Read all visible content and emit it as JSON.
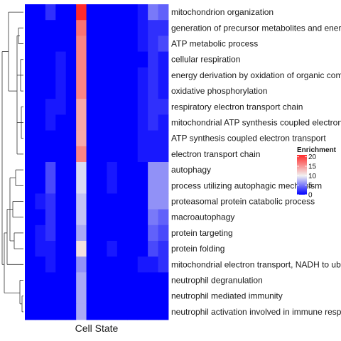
{
  "chart_data": {
    "type": "heatmap",
    "xlabel": "Cell State",
    "legend": {
      "title": "Enrichment",
      "ticks": [
        0,
        5,
        10,
        15,
        20
      ],
      "range": [
        0,
        21
      ],
      "placement": "right",
      "colors": {
        "low": "#0000ff",
        "mid": "#f2f2f2",
        "high": "#ff2a2a"
      }
    },
    "rows": [
      "mitochondrion organization",
      "generation of precursor metabolites and energy",
      "ATP metabolic process",
      "cellular respiration",
      "energy derivation by oxidation of organic compounds",
      "oxidative phosphorylation",
      "respiratory electron transport chain",
      "mitochondrial ATP synthesis coupled electron transport",
      "ATP synthesis coupled electron transport",
      "electron transport chain",
      "autophagy",
      "process utilizing autophagic mechanism",
      "proteasomal protein catabolic process",
      "macroautophagy",
      "protein targeting",
      "protein folding",
      "mitochondrial electron transport, NADH to ubiquinone",
      "neutrophil degranulation",
      "neutrophil mediated immunity",
      "neutrophil activation involved in immune response"
    ],
    "values": [
      [
        0,
        0,
        2,
        0,
        0,
        21,
        0,
        0,
        0,
        0,
        0,
        1,
        5,
        4
      ],
      [
        0,
        0,
        0,
        0,
        0,
        17,
        0,
        0,
        0,
        0,
        0,
        1,
        2,
        2
      ],
      [
        0,
        0,
        0,
        0,
        0,
        16,
        0,
        0,
        0,
        0,
        0,
        1,
        2,
        3
      ],
      [
        0,
        0,
        0,
        1,
        0,
        16,
        0,
        0,
        0,
        0,
        0,
        0,
        2,
        1
      ],
      [
        0,
        0,
        0,
        1,
        0,
        16,
        0,
        0,
        0,
        0,
        0,
        1,
        2,
        1
      ],
      [
        0,
        0,
        0,
        1,
        0,
        16,
        0,
        0,
        0,
        0,
        0,
        1,
        2,
        1
      ],
      [
        0,
        0,
        1,
        1,
        0,
        14,
        0,
        0,
        0,
        0,
        0,
        1,
        2,
        2
      ],
      [
        0,
        0,
        1,
        0,
        0,
        14,
        0,
        0,
        0,
        0,
        0,
        1,
        2,
        1
      ],
      [
        0,
        0,
        0,
        0,
        0,
        14,
        0,
        0,
        0,
        0,
        0,
        1,
        1,
        1
      ],
      [
        0,
        0,
        0,
        0,
        0,
        16,
        0,
        0,
        0,
        0,
        0,
        1,
        1,
        1
      ],
      [
        0,
        0,
        3,
        0,
        0,
        9,
        0,
        0,
        1,
        0,
        0,
        0,
        6,
        6
      ],
      [
        0,
        0,
        3,
        0,
        0,
        9,
        0,
        0,
        1,
        0,
        0,
        0,
        6,
        6
      ],
      [
        0,
        1,
        2,
        0,
        0,
        8,
        0,
        0,
        0,
        0,
        0,
        0,
        6,
        6
      ],
      [
        0,
        0,
        2,
        0,
        0,
        8,
        0,
        0,
        0,
        0,
        0,
        0,
        5,
        4
      ],
      [
        0,
        1,
        2,
        0,
        0,
        7,
        0,
        0,
        0,
        0,
        0,
        0,
        4,
        3
      ],
      [
        0,
        1,
        1,
        0,
        0,
        11,
        0,
        0,
        1,
        0,
        0,
        0,
        3,
        2
      ],
      [
        0,
        0,
        1,
        0,
        0,
        6,
        0,
        0,
        0,
        0,
        0,
        1,
        1,
        2
      ],
      [
        0,
        0,
        0,
        0,
        0,
        7,
        0,
        0,
        0,
        0,
        0,
        0,
        0,
        0
      ],
      [
        0,
        0,
        0,
        0,
        0,
        7,
        0,
        0,
        0,
        0,
        0,
        0,
        0,
        0
      ],
      [
        0,
        0,
        0,
        0,
        0,
        7,
        0,
        0,
        0,
        0,
        0,
        0,
        0,
        0
      ]
    ]
  }
}
